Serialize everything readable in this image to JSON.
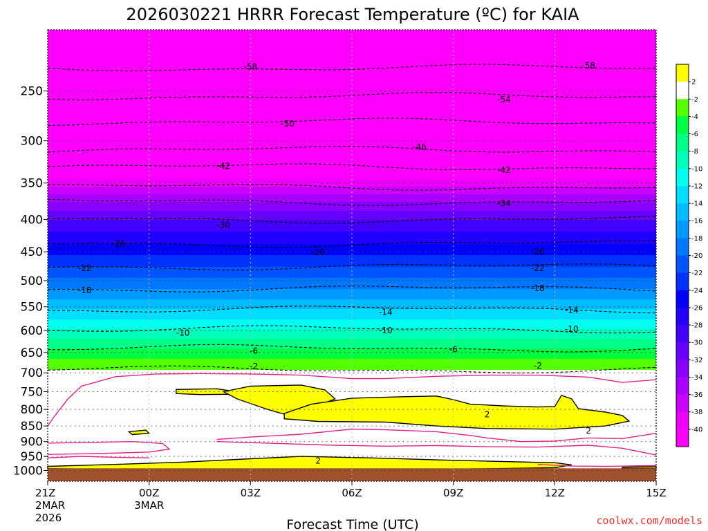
{
  "chart_data": {
    "type": "heatmap",
    "title": "2026030221 HRRR Forecast Temperature (ºC) for KAIA",
    "xlabel": "Forecast Time (UTC)",
    "ylabel": "",
    "credit": "coolwx.com/models",
    "x_ticks": [
      {
        "hours": 0,
        "label": "21Z",
        "label2": "2MAR",
        "label3": "2026"
      },
      {
        "hours": 3,
        "label": "00Z",
        "label2": "3MAR",
        "label3": ""
      },
      {
        "hours": 6,
        "label": "03Z",
        "label2": "",
        "label3": ""
      },
      {
        "hours": 9,
        "label": "06Z",
        "label2": "",
        "label3": ""
      },
      {
        "hours": 12,
        "label": "09Z",
        "label2": "",
        "label3": ""
      },
      {
        "hours": 15,
        "label": "12Z",
        "label2": "",
        "label3": ""
      },
      {
        "hours": 18,
        "label": "15Z",
        "label2": "",
        "label3": ""
      }
    ],
    "x_range": [
      0,
      18
    ],
    "y_axis": "pressure (hPa), log scale, inverted",
    "y_range": [
      1040,
      200
    ],
    "y_ticks": [
      {
        "value": 250,
        "label": "250"
      },
      {
        "value": 300,
        "label": "300"
      },
      {
        "value": 350,
        "label": "350"
      },
      {
        "value": 400,
        "label": "400"
      },
      {
        "value": 450,
        "label": "450"
      },
      {
        "value": 500,
        "label": "500"
      },
      {
        "value": 550,
        "label": "550"
      },
      {
        "value": 600,
        "label": "600"
      },
      {
        "value": 650,
        "label": "650"
      },
      {
        "value": 700,
        "label": "700"
      },
      {
        "value": 750,
        "label": "750"
      },
      {
        "value": 800,
        "label": "800"
      },
      {
        "value": 850,
        "label": "850"
      },
      {
        "value": 900,
        "label": "900"
      },
      {
        "value": 950,
        "label": "950"
      },
      {
        "value": 1000,
        "label": "1000"
      }
    ],
    "colorbar": {
      "bins": [
        {
          "min": -99,
          "max": -40,
          "color": "#ff00ff"
        },
        {
          "min": -40,
          "max": -38,
          "color": "#ee00ff"
        },
        {
          "min": -38,
          "max": -36,
          "color": "#cc00ff"
        },
        {
          "min": -36,
          "max": -34,
          "color": "#aa00ff"
        },
        {
          "min": -34,
          "max": -32,
          "color": "#8800ff"
        },
        {
          "min": -32,
          "max": -30,
          "color": "#6600ff"
        },
        {
          "min": -30,
          "max": -28,
          "color": "#4400ff"
        },
        {
          "min": -28,
          "max": -26,
          "color": "#2200ff"
        },
        {
          "min": -26,
          "max": -24,
          "color": "#0000ff"
        },
        {
          "min": -24,
          "max": -22,
          "color": "#0033ff"
        },
        {
          "min": -22,
          "max": -20,
          "color": "#0055ff"
        },
        {
          "min": -20,
          "max": -18,
          "color": "#0077ff"
        },
        {
          "min": -18,
          "max": -16,
          "color": "#0099ff"
        },
        {
          "min": -16,
          "max": -14,
          "color": "#00bbff"
        },
        {
          "min": -14,
          "max": -12,
          "color": "#00ddff"
        },
        {
          "min": -12,
          "max": -10,
          "color": "#00ffee"
        },
        {
          "min": -10,
          "max": -8,
          "color": "#00ffbb"
        },
        {
          "min": -8,
          "max": -6,
          "color": "#00ff88"
        },
        {
          "min": -6,
          "max": -4,
          "color": "#00ff44"
        },
        {
          "min": -4,
          "max": -2,
          "color": "#55ff00"
        },
        {
          "min": -2,
          "max": 2,
          "color": "#ffffff"
        },
        {
          "min": 2,
          "max": 99,
          "color": "#ffff00"
        }
      ],
      "tick_labels": [
        "2",
        "-2",
        "-4",
        "-6",
        "-8",
        "-10",
        "-12",
        "-14",
        "-16",
        "-18",
        "-20",
        "-22",
        "-24",
        "-26",
        "-28",
        "-30",
        "-32",
        "-34",
        "-36",
        "-38",
        "-40"
      ],
      "ground_color": "#a0522d"
    },
    "temperature_profile": [
      {
        "pressure": 200,
        "temp": -64
      },
      {
        "pressure": 230,
        "temp": -58
      },
      {
        "pressure": 255,
        "temp": -54
      },
      {
        "pressure": 280,
        "temp": -50
      },
      {
        "pressure": 310,
        "temp": -46
      },
      {
        "pressure": 330,
        "temp": -42
      },
      {
        "pressure": 345,
        "temp": -40
      },
      {
        "pressure": 375,
        "temp": -34
      },
      {
        "pressure": 400,
        "temp": -30
      },
      {
        "pressure": 437,
        "temp": -26
      },
      {
        "pressure": 475,
        "temp": -22
      },
      {
        "pressure": 515,
        "temp": -18
      },
      {
        "pressure": 555,
        "temp": -14
      },
      {
        "pressure": 597,
        "temp": -10
      },
      {
        "pressure": 640,
        "temp": -6
      },
      {
        "pressure": 665,
        "temp": -4
      },
      {
        "pressure": 692,
        "temp": -2
      },
      {
        "pressure": 1000,
        "temp": 1.5
      }
    ],
    "contour_labels": [
      {
        "hours": 6.0,
        "pressure": 229,
        "label": "-58"
      },
      {
        "hours": 16.0,
        "pressure": 228,
        "label": "-58"
      },
      {
        "hours": 13.5,
        "pressure": 258,
        "label": "-54"
      },
      {
        "hours": 7.1,
        "pressure": 282,
        "label": "-50"
      },
      {
        "hours": 11.0,
        "pressure": 307,
        "label": "-46"
      },
      {
        "hours": 5.2,
        "pressure": 329,
        "label": "-42"
      },
      {
        "hours": 13.5,
        "pressure": 334,
        "label": "-42"
      },
      {
        "hours": 13.5,
        "pressure": 377,
        "label": "-34"
      },
      {
        "hours": 5.2,
        "pressure": 408,
        "label": "-30"
      },
      {
        "hours": 2.1,
        "pressure": 437,
        "label": "-26"
      },
      {
        "hours": 8.0,
        "pressure": 451,
        "label": "-26"
      },
      {
        "hours": 14.5,
        "pressure": 450,
        "label": "-26"
      },
      {
        "hours": 1.1,
        "pressure": 478,
        "label": "-22"
      },
      {
        "hours": 14.5,
        "pressure": 478,
        "label": "-22"
      },
      {
        "hours": 1.1,
        "pressure": 518,
        "label": "-18"
      },
      {
        "hours": 14.5,
        "pressure": 514,
        "label": "-18"
      },
      {
        "hours": 10.0,
        "pressure": 561,
        "label": "-14"
      },
      {
        "hours": 15.5,
        "pressure": 557,
        "label": "-14"
      },
      {
        "hours": 4.0,
        "pressure": 605,
        "label": "-10"
      },
      {
        "hours": 10.0,
        "pressure": 600,
        "label": "-10"
      },
      {
        "hours": 15.5,
        "pressure": 597,
        "label": "-10"
      },
      {
        "hours": 6.1,
        "pressure": 646,
        "label": "-6"
      },
      {
        "hours": 12.0,
        "pressure": 643,
        "label": "-6"
      },
      {
        "hours": 6.1,
        "pressure": 684,
        "label": "-2"
      },
      {
        "hours": 14.5,
        "pressure": 682,
        "label": "-2"
      },
      {
        "hours": 13.0,
        "pressure": 815,
        "label": "2"
      },
      {
        "hours": 16.0,
        "pressure": 865,
        "label": "2"
      },
      {
        "hours": 8.0,
        "pressure": 965,
        "label": "2"
      }
    ],
    "warm_regions_above_2C": [
      {
        "name": "yellow-region-a",
        "points": [
          [
            3.8,
            744
          ],
          [
            5.0,
            742
          ],
          [
            5.5,
            749
          ],
          [
            5.5,
            757
          ],
          [
            4.5,
            758
          ],
          [
            3.8,
            755
          ]
        ]
      },
      {
        "name": "yellow-region-b",
        "points": [
          [
            5.2,
            750
          ],
          [
            6.0,
            735
          ],
          [
            7.5,
            732
          ],
          [
            8.2,
            745
          ],
          [
            8.5,
            770
          ],
          [
            8.0,
            790
          ],
          [
            7.2,
            820
          ],
          [
            6.5,
            800
          ],
          [
            5.6,
            770
          ]
        ]
      },
      {
        "name": "yellow-region-c",
        "points": [
          [
            2.4,
            868
          ],
          [
            2.9,
            863
          ],
          [
            3.0,
            873
          ],
          [
            2.5,
            877
          ]
        ]
      },
      {
        "name": "yellow-region-d",
        "points": [
          [
            7.0,
            812
          ],
          [
            7.8,
            785
          ],
          [
            9.0,
            768
          ],
          [
            10.5,
            764
          ],
          [
            11.5,
            762
          ],
          [
            12.0,
            772
          ],
          [
            12.5,
            785
          ],
          [
            13.5,
            790
          ],
          [
            14.5,
            793
          ],
          [
            15.0,
            792
          ],
          [
            15.2,
            760
          ],
          [
            15.5,
            770
          ],
          [
            15.7,
            798
          ],
          [
            16.5,
            808
          ],
          [
            17.0,
            818
          ],
          [
            17.2,
            835
          ],
          [
            16.5,
            850
          ],
          [
            15.0,
            860
          ],
          [
            13.0,
            858
          ],
          [
            11.5,
            850
          ],
          [
            10.0,
            838
          ],
          [
            8.0,
            836
          ],
          [
            7.0,
            828
          ]
        ]
      },
      {
        "name": "yellow-region-e",
        "points": [
          [
            0.0,
            985
          ],
          [
            2.0,
            978
          ],
          [
            4.0,
            970
          ],
          [
            6.0,
            958
          ],
          [
            7.5,
            950
          ],
          [
            9.5,
            955
          ],
          [
            11.5,
            962
          ],
          [
            13.5,
            968
          ],
          [
            15.0,
            972
          ],
          [
            15.5,
            980
          ],
          [
            15.0,
            990
          ],
          [
            12.0,
            995
          ],
          [
            9.0,
            998
          ],
          [
            5.0,
            998
          ],
          [
            2.0,
            996
          ],
          [
            0.0,
            993
          ]
        ]
      },
      {
        "name": "yellow-region-f",
        "points": [
          [
            17.0,
            988
          ],
          [
            17.8,
            986
          ],
          [
            18.0,
            986
          ],
          [
            18.0,
            992
          ],
          [
            17.0,
            992
          ]
        ]
      }
    ],
    "magenta_contours": [
      {
        "name": "rh-contour-1",
        "points": [
          [
            0.0,
            850
          ],
          [
            0.2,
            820
          ],
          [
            0.6,
            770
          ],
          [
            1.0,
            735
          ],
          [
            1.4,
            725
          ],
          [
            2.0,
            710
          ],
          [
            3.2,
            703
          ],
          [
            4.5,
            702
          ],
          [
            6.0,
            703
          ],
          [
            7.5,
            706
          ],
          [
            9.0,
            715
          ],
          [
            10.0,
            715
          ],
          [
            11.5,
            709
          ],
          [
            13.0,
            706
          ],
          [
            14.5,
            706
          ],
          [
            16.0,
            711
          ],
          [
            17.0,
            725
          ],
          [
            18.0,
            718
          ]
        ]
      },
      {
        "name": "rh-contour-2",
        "points": [
          [
            0.0,
            905
          ],
          [
            1.0,
            903
          ],
          [
            2.5,
            900
          ],
          [
            3.4,
            906
          ],
          [
            3.6,
            925
          ],
          [
            3.0,
            935
          ],
          [
            1.5,
            940
          ],
          [
            0.0,
            943
          ]
        ]
      },
      {
        "name": "rh-contour-3",
        "points": [
          [
            5.0,
            893
          ],
          [
            6.0,
            885
          ],
          [
            7.5,
            876
          ],
          [
            9.0,
            860
          ],
          [
            10.0,
            862
          ],
          [
            11.5,
            868
          ],
          [
            12.5,
            880
          ],
          [
            13.0,
            888
          ],
          [
            14.0,
            900
          ],
          [
            15.0,
            898
          ],
          [
            16.0,
            888
          ],
          [
            17.0,
            890
          ],
          [
            18.0,
            873
          ]
        ]
      },
      {
        "name": "rh-contour-4",
        "points": [
          [
            5.0,
            900
          ],
          [
            6.5,
            905
          ],
          [
            8.5,
            912
          ],
          [
            10.0,
            915
          ],
          [
            11.5,
            913
          ],
          [
            13.0,
            917
          ],
          [
            14.5,
            918
          ],
          [
            16.0,
            912
          ],
          [
            17.0,
            922
          ],
          [
            18.0,
            945
          ]
        ]
      },
      {
        "name": "rh-contour-5",
        "points": [
          [
            0.0,
            955
          ],
          [
            1.0,
            950
          ],
          [
            2.0,
            953
          ],
          [
            3.0,
            955
          ]
        ]
      },
      {
        "name": "rh-contour-6",
        "points": [
          [
            14.5,
            978
          ],
          [
            15.5,
            984
          ],
          [
            16.5,
            985
          ],
          [
            17.5,
            983
          ],
          [
            18.0,
            982
          ]
        ]
      }
    ]
  }
}
